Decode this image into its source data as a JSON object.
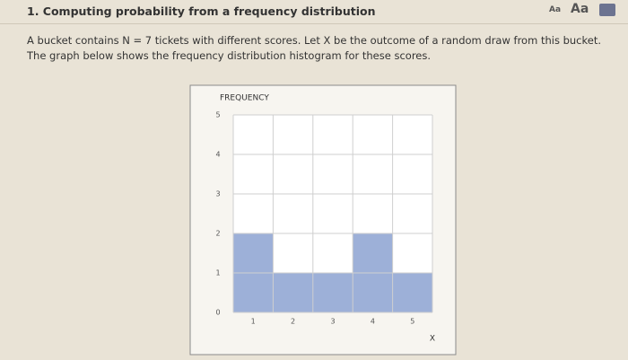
{
  "header": {
    "title": "1. Computing probability from a frequency distribution",
    "font_small": "Aa",
    "font_large": "Aa"
  },
  "question": "A bucket contains N = 7 tickets with different scores. Let X be the outcome of a random draw from this bucket. The graph below shows the frequency distribution histogram for these scores.",
  "chart_data": {
    "type": "histogram",
    "y_label": "FREQUENCY",
    "x_label": "X",
    "bins": [
      0.5,
      1.5,
      2.5,
      3.5,
      4.5,
      5.5
    ],
    "values": [
      2,
      1,
      1,
      2,
      1
    ],
    "color": "#9db0d8",
    "xlim": [
      0.5,
      5.5
    ],
    "xticks": [
      1,
      2,
      3,
      4,
      5
    ],
    "ylim": [
      0,
      5
    ],
    "yticks": [
      0,
      1,
      2,
      3,
      4,
      5
    ],
    "grid": true
  }
}
